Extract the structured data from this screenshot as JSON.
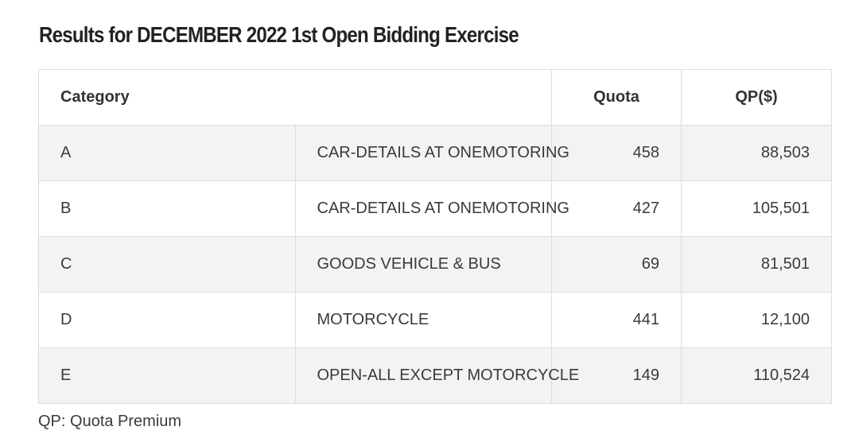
{
  "page": {
    "title": "Results for DECEMBER 2022 1st Open Bidding Exercise",
    "footnote": "QP: Quota Premium"
  },
  "table": {
    "headers": {
      "category": "Category",
      "quota": "Quota",
      "qp": "QP($)"
    },
    "rows": [
      {
        "code": "A",
        "description": "CAR-DETAILS AT ONEMOTORING",
        "quota": "458",
        "qp": "88,503"
      },
      {
        "code": "B",
        "description": "CAR-DETAILS AT ONEMOTORING",
        "quota": "427",
        "qp": "105,501"
      },
      {
        "code": "C",
        "description": "GOODS VEHICLE & BUS",
        "quota": "69",
        "qp": "81,501"
      },
      {
        "code": "D",
        "description": "MOTORCYCLE",
        "quota": "441",
        "qp": "12,100"
      },
      {
        "code": "E",
        "description": "OPEN-ALL EXCEPT MOTORCYCLE",
        "quota": "149",
        "qp": "110,524"
      }
    ]
  },
  "colors": {
    "stripe": "#f3f3f3",
    "border": "#dcdcdc",
    "text": "#333333"
  }
}
